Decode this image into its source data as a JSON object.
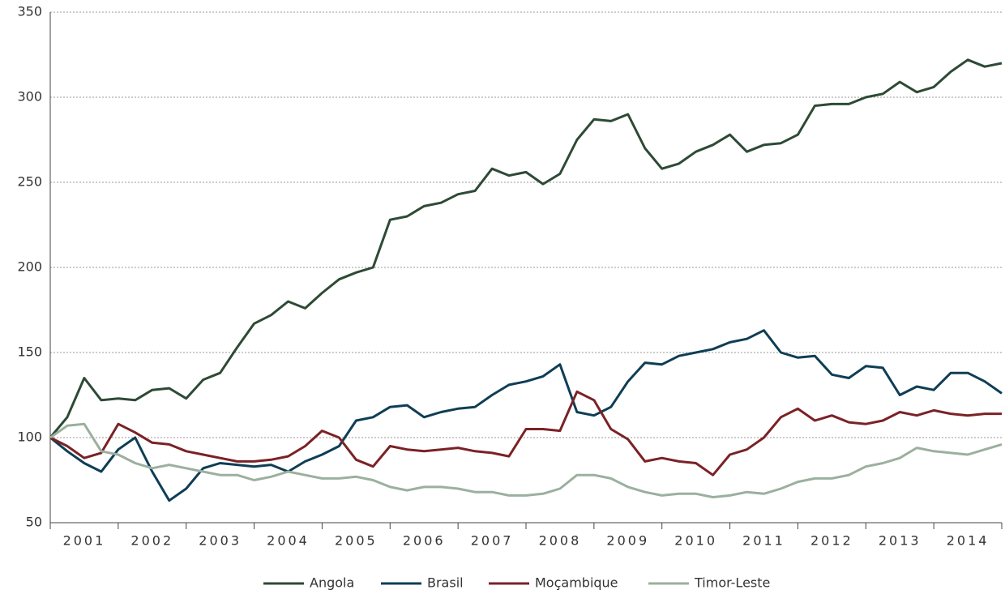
{
  "chart_data": {
    "type": "line",
    "x": [
      2001,
      2001.25,
      2001.5,
      2001.75,
      2002,
      2002.25,
      2002.5,
      2002.75,
      2003,
      2003.25,
      2003.5,
      2003.75,
      2004,
      2004.25,
      2004.5,
      2004.75,
      2005,
      2005.25,
      2005.5,
      2005.75,
      2006,
      2006.25,
      2006.5,
      2006.75,
      2007,
      2007.25,
      2007.5,
      2007.75,
      2008,
      2008.25,
      2008.5,
      2008.75,
      2009,
      2009.25,
      2009.5,
      2009.75,
      2010,
      2010.25,
      2010.5,
      2010.75,
      2011,
      2011.25,
      2011.5,
      2011.75,
      2012,
      2012.25,
      2012.5,
      2012.75,
      2013,
      2013.25,
      2013.5,
      2013.75,
      2014,
      2014.25,
      2014.5,
      2014.75,
      2015
    ],
    "series": [
      {
        "name": "Angola",
        "color": "#2d4a35",
        "values": [
          100,
          112,
          135,
          122,
          123,
          122,
          128,
          129,
          123,
          134,
          138,
          153,
          167,
          172,
          180,
          176,
          185,
          193,
          197,
          200,
          228,
          230,
          236,
          238,
          243,
          245,
          258,
          254,
          256,
          249,
          255,
          275,
          287,
          286,
          290,
          270,
          258,
          261,
          268,
          272,
          278,
          268,
          272,
          273,
          278,
          295,
          296,
          296,
          300,
          302,
          309,
          303,
          306,
          315,
          322,
          318,
          320
        ]
      },
      {
        "name": "Brasil",
        "color": "#0e3e55",
        "values": [
          100,
          92,
          85,
          80,
          93,
          100,
          80,
          63,
          70,
          82,
          85,
          84,
          83,
          84,
          80,
          86,
          90,
          95,
          110,
          112,
          118,
          119,
          112,
          115,
          117,
          118,
          125,
          131,
          133,
          136,
          143,
          115,
          113,
          118,
          133,
          144,
          143,
          148,
          150,
          152,
          156,
          158,
          163,
          150,
          147,
          148,
          137,
          135,
          142,
          141,
          125,
          130,
          128,
          138,
          138,
          133,
          126
        ]
      },
      {
        "name": "Moçambique",
        "color": "#7a2226",
        "values": [
          100,
          95,
          88,
          91,
          108,
          103,
          97,
          96,
          92,
          90,
          88,
          86,
          86,
          87,
          89,
          95,
          104,
          100,
          87,
          83,
          95,
          93,
          92,
          93,
          94,
          92,
          91,
          89,
          105,
          105,
          104,
          127,
          122,
          105,
          99,
          86,
          88,
          86,
          85,
          78,
          90,
          93,
          100,
          112,
          117,
          110,
          113,
          109,
          108,
          110,
          115,
          113,
          116,
          114,
          113,
          114,
          114
        ]
      },
      {
        "name": "Timor-Leste",
        "color": "#9bb09e",
        "values": [
          100,
          107,
          108,
          92,
          90,
          85,
          82,
          84,
          82,
          80,
          78,
          78,
          75,
          77,
          80,
          78,
          76,
          76,
          77,
          75,
          71,
          69,
          71,
          71,
          70,
          68,
          68,
          66,
          66,
          67,
          70,
          78,
          78,
          76,
          71,
          68,
          66,
          67,
          67,
          65,
          66,
          68,
          67,
          70,
          74,
          76,
          76,
          78,
          83,
          85,
          88,
          94,
          92,
          91,
          90,
          93,
          96
        ]
      }
    ],
    "xlim": [
      2001,
      2015
    ],
    "xticks": [
      {
        "value": 2001.5,
        "label": "2001"
      },
      {
        "value": 2002.5,
        "label": "2002"
      },
      {
        "value": 2003.5,
        "label": "2003"
      },
      {
        "value": 2004.5,
        "label": "2004"
      },
      {
        "value": 2005.5,
        "label": "2005"
      },
      {
        "value": 2006.5,
        "label": "2006"
      },
      {
        "value": 2007.5,
        "label": "2007"
      },
      {
        "value": 2008.5,
        "label": "2008"
      },
      {
        "value": 2009.5,
        "label": "2009"
      },
      {
        "value": 2010.5,
        "label": "2010"
      },
      {
        "value": 2011.5,
        "label": "2011"
      },
      {
        "value": 2012.5,
        "label": "2012"
      },
      {
        "value": 2013.5,
        "label": "2013"
      },
      {
        "value": 2014.5,
        "label": "2014"
      }
    ],
    "ylim": [
      50,
      350
    ],
    "yticks": [
      50,
      100,
      150,
      200,
      250,
      300,
      350
    ],
    "grid": true,
    "legend": "bottom"
  }
}
